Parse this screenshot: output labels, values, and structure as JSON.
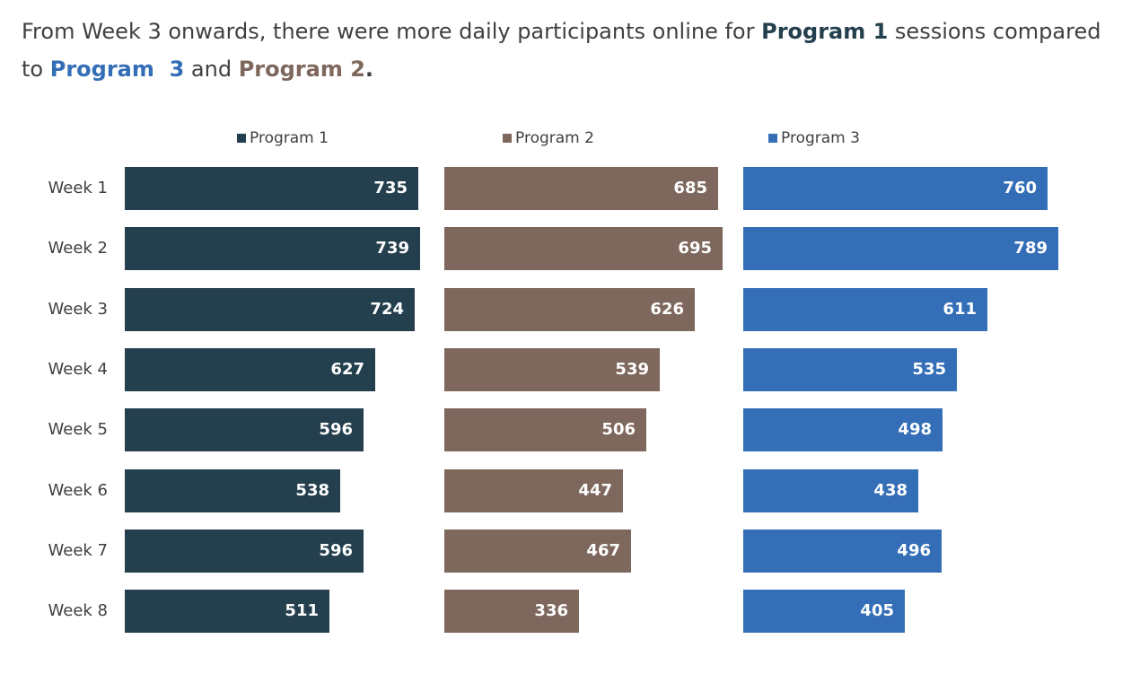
{
  "headline": {
    "prefix": "From Week 3 onwards, there were more daily participants online for ",
    "p1": "Program 1",
    "middle": " sessions compared to ",
    "p3": "Program  3",
    "and": " and ",
    "p2": "Program 2",
    "suffix": "."
  },
  "colors": {
    "program1": "#243F4D",
    "program2": "#7E675C",
    "program3": "#336EB7",
    "text": "#404040"
  },
  "chart_data": {
    "type": "bar",
    "orientation": "horizontal",
    "layout": "small-multiples",
    "categories": [
      "Week 1",
      "Week 2",
      "Week 3",
      "Week 4",
      "Week 5",
      "Week 6",
      "Week 7",
      "Week 8"
    ],
    "series": [
      {
        "name": "Program 1",
        "values": [
          735,
          739,
          724,
          627,
          596,
          538,
          596,
          511
        ]
      },
      {
        "name": "Program 2",
        "values": [
          685,
          695,
          626,
          539,
          506,
          447,
          467,
          336
        ]
      },
      {
        "name": "Program 3",
        "values": [
          760,
          789,
          611,
          535,
          498,
          438,
          496,
          405
        ]
      }
    ],
    "data_labels": true,
    "legend": "top",
    "grid": false
  }
}
